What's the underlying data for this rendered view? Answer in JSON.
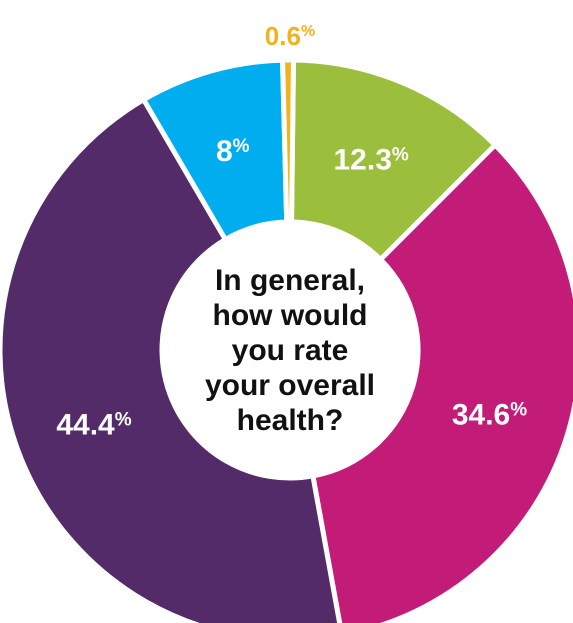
{
  "chart_data": {
    "type": "pie",
    "style": "donut",
    "center_text": [
      "In general,",
      "how would",
      "you rate",
      "your overall",
      "health?"
    ],
    "slices": [
      {
        "value": 12.3,
        "label": "12.3",
        "unit": "%",
        "color": "#9bbe3c",
        "label_color": "#ffffff"
      },
      {
        "value": 34.6,
        "label": "34.6",
        "unit": "%",
        "color": "#c31c78",
        "label_color": "#ffffff"
      },
      {
        "value": 44.4,
        "label": "44.4",
        "unit": "%",
        "color": "#532b69",
        "label_color": "#ffffff"
      },
      {
        "value": 8,
        "label": "8",
        "unit": "%",
        "color": "#00aeef",
        "label_color": "#ffffff"
      },
      {
        "value": 0.6,
        "label": "0.6",
        "unit": "%",
        "color": "#f2b21d",
        "label_color": "#f2b21d"
      }
    ]
  }
}
